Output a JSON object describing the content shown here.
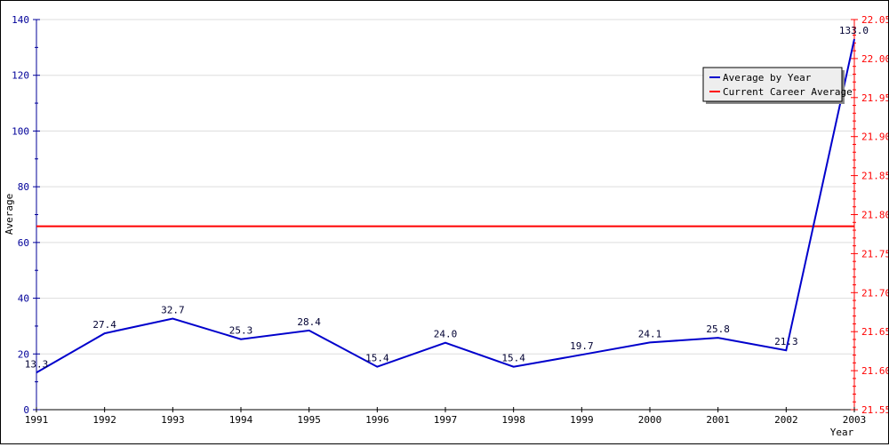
{
  "chart_data": {
    "type": "line",
    "xlabel": "Year",
    "ylabel": "Average",
    "x": [
      1991,
      1992,
      1993,
      1994,
      1995,
      1996,
      1997,
      1998,
      1999,
      2000,
      2001,
      2002,
      2003
    ],
    "x_tick_labels": [
      "1991",
      "1992",
      "1993",
      "1994",
      "1995",
      "1996",
      "1997",
      "1998",
      "1999",
      "2000",
      "2001",
      "2002",
      "2003"
    ],
    "ylim": [
      0,
      140
    ],
    "y_ticks": [
      0,
      20,
      40,
      60,
      80,
      100,
      120,
      140
    ],
    "y_tick_labels": [
      "0",
      "20",
      "40",
      "60",
      "80",
      "100",
      "120",
      "140"
    ],
    "y2lim": [
      21.55,
      22.05
    ],
    "y2_ticks": [
      21.55,
      21.6,
      21.65,
      21.7,
      21.75,
      21.8,
      21.85,
      21.9,
      21.95,
      22.0,
      22.05
    ],
    "y2_tick_labels": [
      "21.55",
      "21.60",
      "21.65",
      "21.70",
      "21.75",
      "21.80",
      "21.85",
      "21.90",
      "21.95",
      "22.00",
      "22.05"
    ],
    "grid": true,
    "legend_position": "top-right",
    "series": [
      {
        "name": "Average by Year",
        "axis": "left",
        "color": "#0000cc",
        "values": [
          13.3,
          27.4,
          32.7,
          25.3,
          28.4,
          15.4,
          24.0,
          15.4,
          19.7,
          24.1,
          25.8,
          21.3,
          133.0
        ],
        "labels": [
          "13.3",
          "27.4",
          "32.7",
          "25.3",
          "28.4",
          "15.4",
          "24.0",
          "15.4",
          "19.7",
          "24.1",
          "25.8",
          "21.3",
          "133.0"
        ]
      },
      {
        "name": "Current Career Average",
        "axis": "right",
        "color": "#ff0000",
        "value": 21.785
      }
    ],
    "colors": {
      "left_axis": "#000099",
      "right_axis": "#ff0000",
      "grid": "#dddddd",
      "legend_bg": "#eeeeee"
    }
  }
}
